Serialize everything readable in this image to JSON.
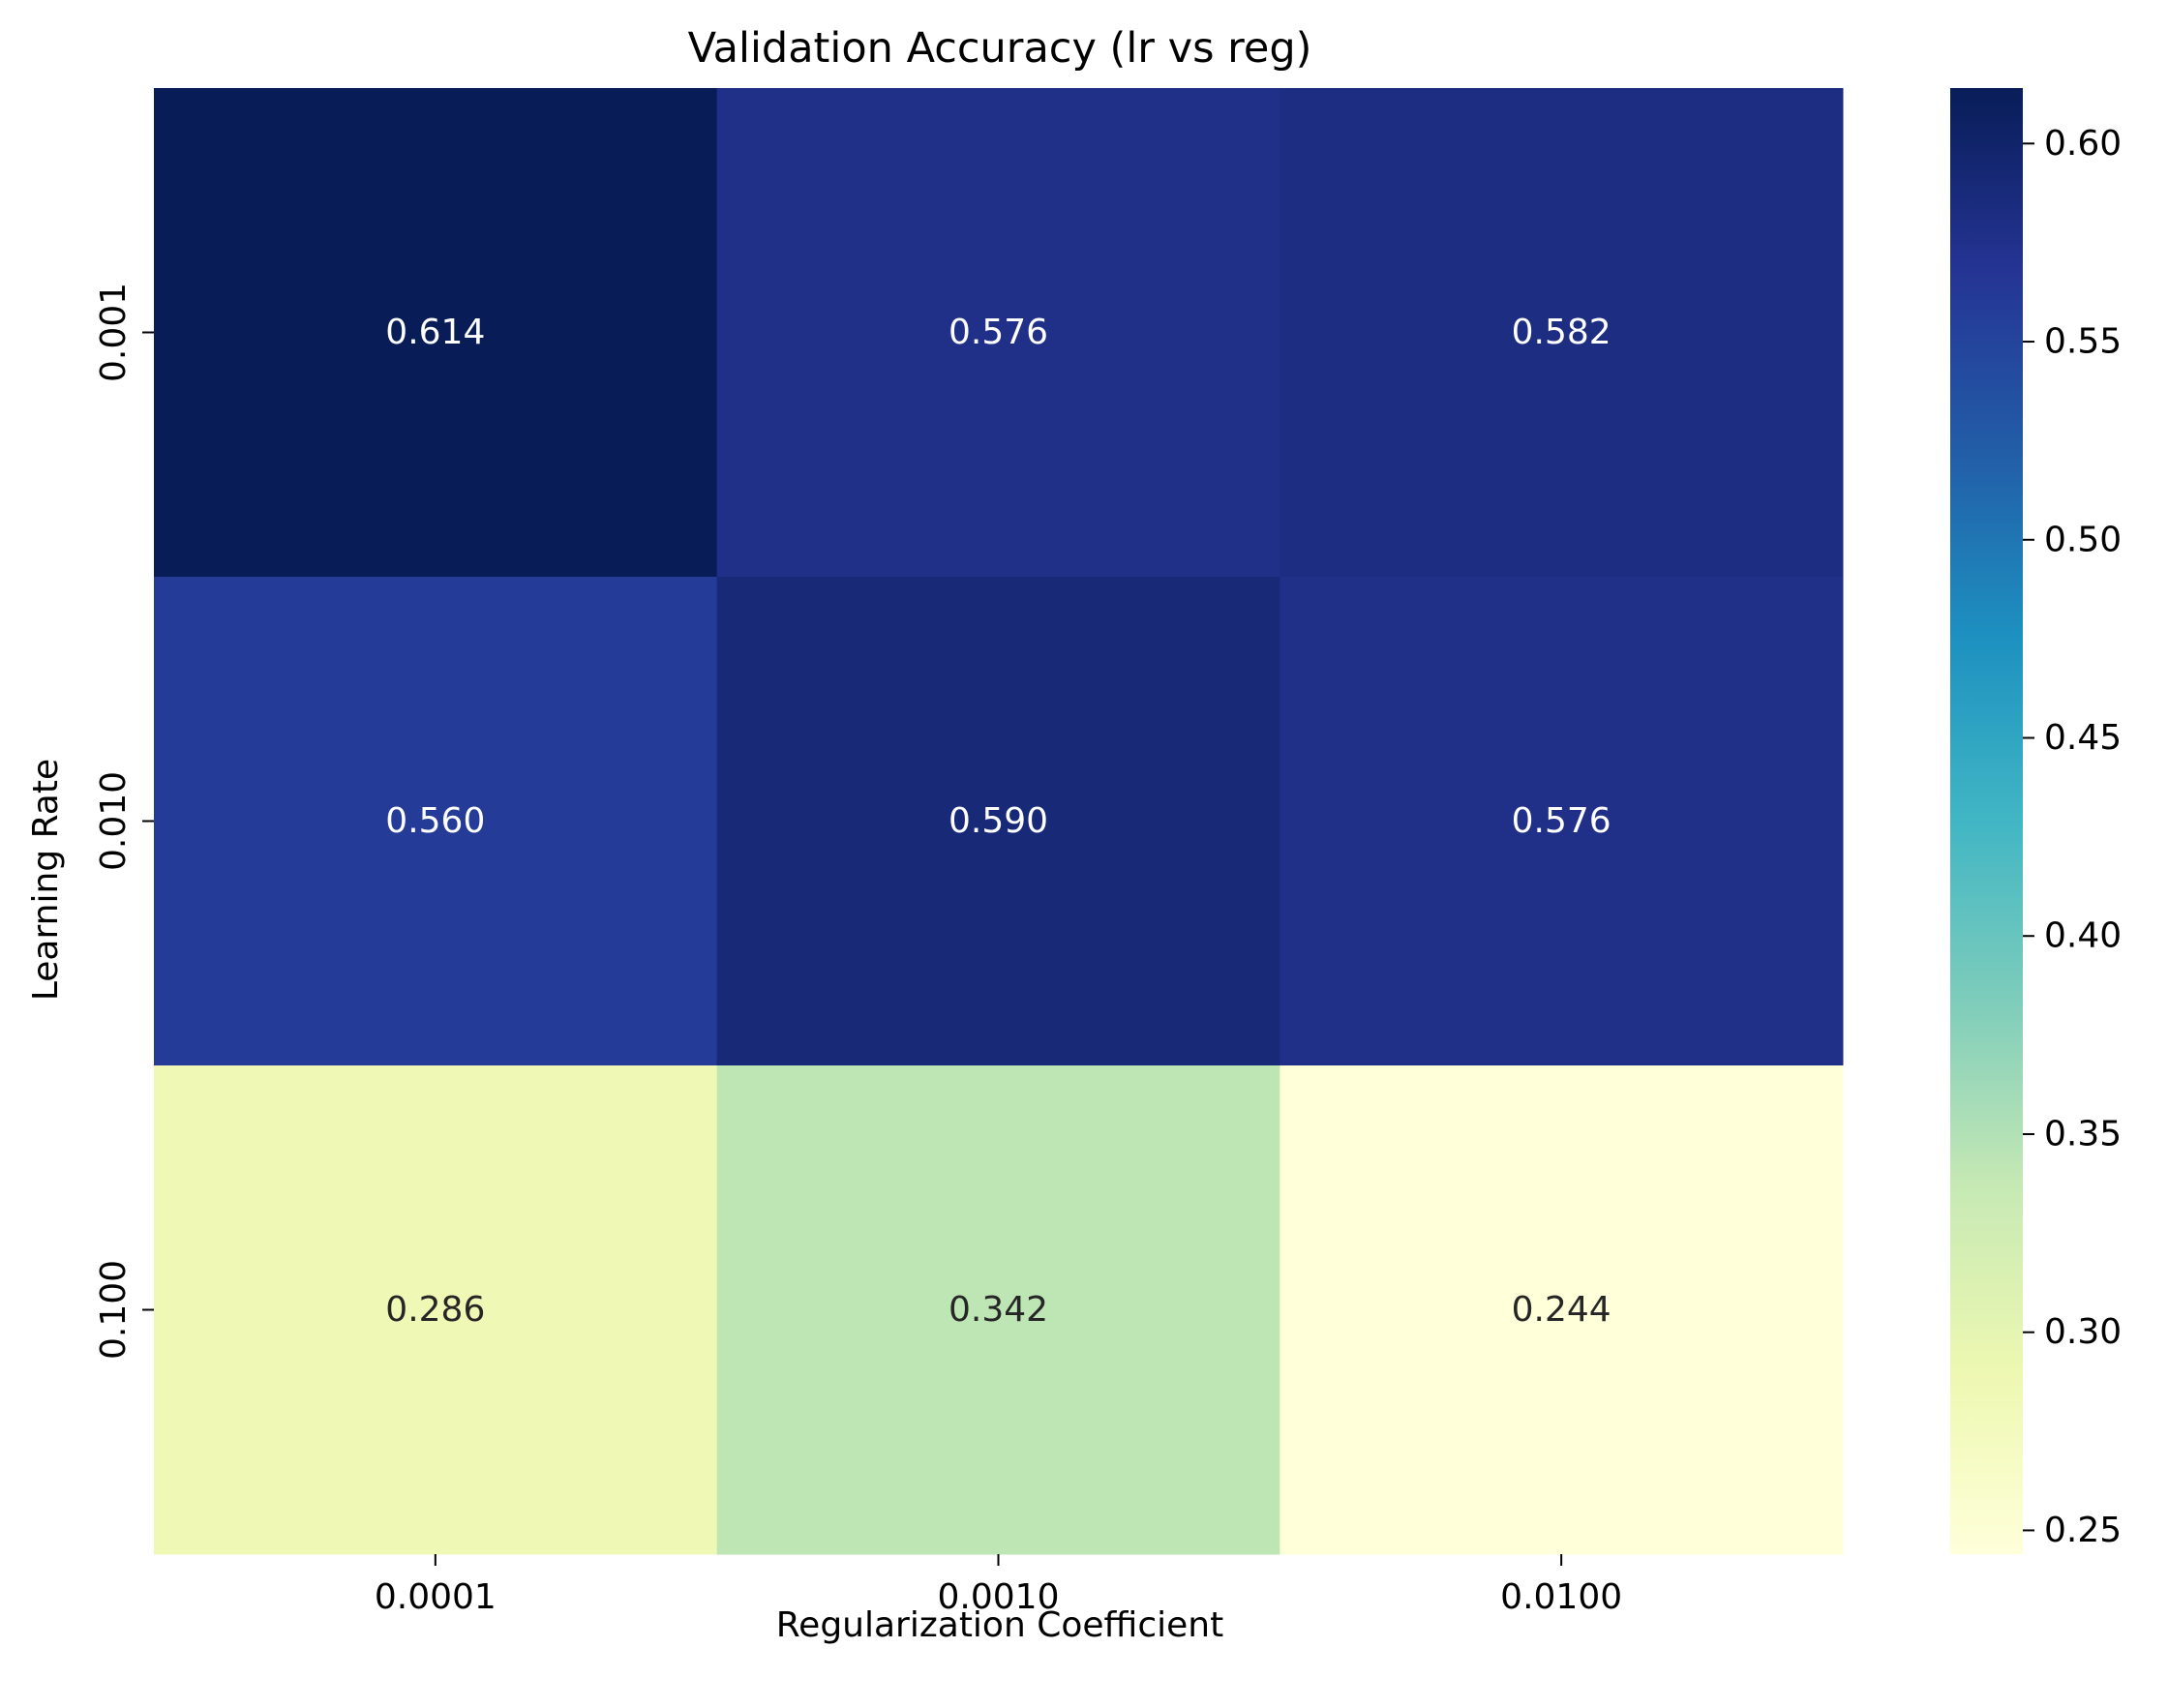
{
  "chart_data": {
    "type": "heatmap",
    "title": "Validation Accuracy (lr vs reg)",
    "xlabel": "Regularization Coefficient",
    "ylabel": "Learning Rate",
    "x_categories": [
      "0.0001",
      "0.0010",
      "0.0100"
    ],
    "y_categories": [
      "0.001",
      "0.010",
      "0.100"
    ],
    "values": [
      [
        0.614,
        0.576,
        0.582
      ],
      [
        0.56,
        0.59,
        0.576
      ],
      [
        0.286,
        0.342,
        0.244
      ]
    ],
    "value_labels": [
      [
        "0.614",
        "0.576",
        "0.582"
      ],
      [
        "0.560",
        "0.590",
        "0.576"
      ],
      [
        "0.286",
        "0.342",
        "0.244"
      ]
    ],
    "colormap": "YlGnBu",
    "color_range": [
      0.244,
      0.614
    ],
    "colorbar_ticks": [
      0.25,
      0.3,
      0.35,
      0.4,
      0.45,
      0.5,
      0.55,
      0.6
    ],
    "colorbar_tick_labels": [
      "0.25",
      "0.30",
      "0.35",
      "0.40",
      "0.45",
      "0.50",
      "0.55",
      "0.60"
    ],
    "colormap_stops": [
      "#ffffd9",
      "#edf8b1",
      "#c7e9b4",
      "#7fcdbb",
      "#41b6c4",
      "#1d91c0",
      "#225ea8",
      "#253494",
      "#081d58"
    ],
    "annotation_colors": {
      "light": "#ffffff",
      "dark": "#262626"
    },
    "legend_position": "right (colorbar)",
    "grid": false
  }
}
